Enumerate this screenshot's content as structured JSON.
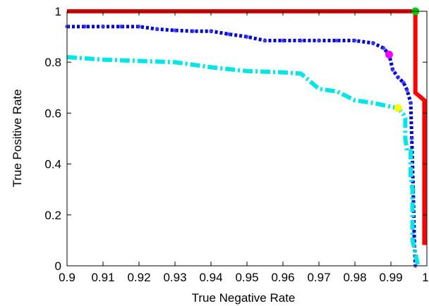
{
  "chart_data": {
    "type": "line",
    "title": "",
    "xlabel": "True Negative Rate",
    "ylabel": "True Positive Rate",
    "xlim": [
      0.9,
      1.0
    ],
    "ylim": [
      0,
      1.0
    ],
    "grid": false,
    "x_ticks": [
      0.9,
      0.91,
      0.92,
      0.93,
      0.94,
      0.95,
      0.96,
      0.97,
      0.98,
      0.99,
      1.0
    ],
    "x_tick_labels": [
      "0.9",
      "0.91",
      "0.92",
      "0.93",
      "0.94",
      "0.95",
      "0.96",
      "0.97",
      "0.98",
      "0.99",
      "1"
    ],
    "y_ticks": [
      0,
      0.2,
      0.4,
      0.6,
      0.8,
      1.0
    ],
    "y_tick_labels": [
      "0",
      "0.2",
      "0.4",
      "0.6",
      "0.8",
      "1"
    ],
    "series": [
      {
        "color": "#ff0000",
        "style": "solid",
        "points": [
          [
            0.9,
            1.0
          ],
          [
            0.9968,
            1.0
          ],
          [
            0.9968,
            0.68
          ],
          [
            0.9993,
            0.65
          ],
          [
            0.9993,
            0.09
          ],
          [
            1.0,
            0.09
          ]
        ]
      },
      {
        "color": "#0000cc",
        "style": "dotted-star",
        "points": [
          [
            0.9,
            0.94
          ],
          [
            0.905,
            0.94
          ],
          [
            0.91,
            0.94
          ],
          [
            0.915,
            0.94
          ],
          [
            0.92,
            0.94
          ],
          [
            0.925,
            0.93
          ],
          [
            0.93,
            0.925
          ],
          [
            0.935,
            0.922
          ],
          [
            0.94,
            0.922
          ],
          [
            0.945,
            0.91
          ],
          [
            0.95,
            0.9
          ],
          [
            0.955,
            0.885
          ],
          [
            0.96,
            0.885
          ],
          [
            0.965,
            0.885
          ],
          [
            0.97,
            0.885
          ],
          [
            0.975,
            0.885
          ],
          [
            0.98,
            0.885
          ],
          [
            0.985,
            0.875
          ],
          [
            0.988,
            0.855
          ],
          [
            0.9895,
            0.83
          ],
          [
            0.9905,
            0.77
          ],
          [
            0.992,
            0.74
          ],
          [
            0.9935,
            0.72
          ],
          [
            0.9945,
            0.69
          ],
          [
            0.9955,
            0.64
          ],
          [
            0.9958,
            0.5
          ],
          [
            0.9962,
            0.3
          ],
          [
            0.9965,
            0.1
          ],
          [
            0.9968,
            0.0
          ]
        ]
      },
      {
        "color": "#00e5e5",
        "style": "dashdot",
        "points": [
          [
            0.9,
            0.82
          ],
          [
            0.91,
            0.81
          ],
          [
            0.92,
            0.805
          ],
          [
            0.93,
            0.8
          ],
          [
            0.94,
            0.78
          ],
          [
            0.95,
            0.765
          ],
          [
            0.96,
            0.76
          ],
          [
            0.965,
            0.755
          ],
          [
            0.97,
            0.695
          ],
          [
            0.975,
            0.685
          ],
          [
            0.98,
            0.65
          ],
          [
            0.985,
            0.64
          ],
          [
            0.99,
            0.625
          ],
          [
            0.992,
            0.62
          ],
          [
            0.9935,
            0.595
          ],
          [
            0.994,
            0.58
          ],
          [
            0.994,
            0.5
          ],
          [
            0.9945,
            0.45
          ],
          [
            0.9955,
            0.45
          ],
          [
            0.9955,
            0.35
          ],
          [
            0.996,
            0.3
          ],
          [
            0.996,
            0.1
          ],
          [
            0.9965,
            0.07
          ],
          [
            0.9975,
            0.0
          ]
        ]
      }
    ],
    "markers": [
      {
        "x": 0.9968,
        "y": 1.0,
        "color": "#00cc00"
      },
      {
        "x": 0.9895,
        "y": 0.83,
        "color": "#ff00ff"
      },
      {
        "x": 0.992,
        "y": 0.62,
        "color": "#ffff00"
      }
    ]
  }
}
